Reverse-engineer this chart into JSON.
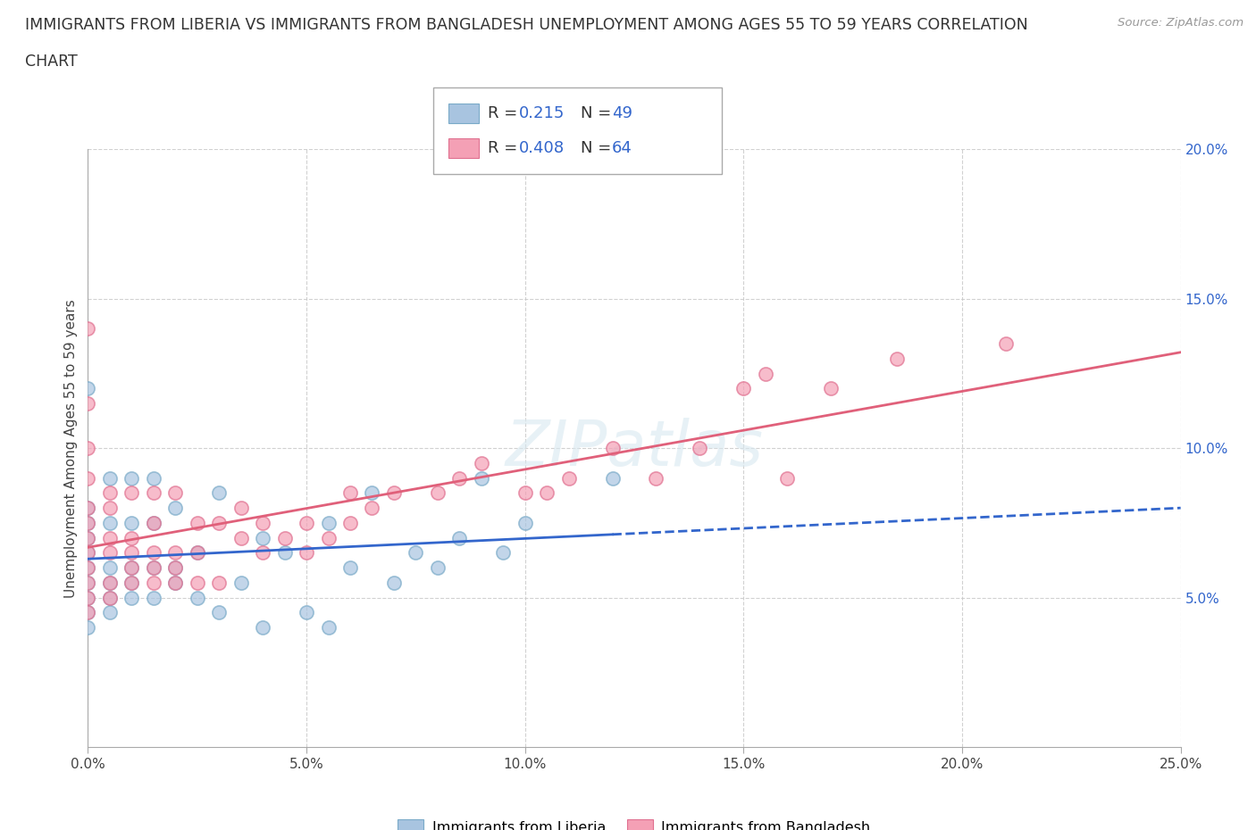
{
  "title_line1": "IMMIGRANTS FROM LIBERIA VS IMMIGRANTS FROM BANGLADESH UNEMPLOYMENT AMONG AGES 55 TO 59 YEARS CORRELATION",
  "title_line2": "CHART",
  "source_text": "Source: ZipAtlas.com",
  "ylabel": "Unemployment Among Ages 55 to 59 years",
  "xlim": [
    0.0,
    0.25
  ],
  "ylim": [
    0.0,
    0.2
  ],
  "xticks": [
    0.0,
    0.05,
    0.1,
    0.15,
    0.2,
    0.25
  ],
  "xticklabels": [
    "0.0%",
    "5.0%",
    "10.0%",
    "15.0%",
    "20.0%",
    "25.0%"
  ],
  "yticks": [
    0.05,
    0.1,
    0.15,
    0.2
  ],
  "yticklabels": [
    "5.0%",
    "10.0%",
    "15.0%",
    "20.0%"
  ],
  "liberia_color": "#a8c4e0",
  "liberia_edge_color": "#7aaac8",
  "bangladesh_color": "#f4a0b5",
  "bangladesh_edge_color": "#e07090",
  "trendline_liberia_color": "#3366cc",
  "trendline_bangladesh_color": "#e0607a",
  "legend_R_color": "#3366cc",
  "liberia_R": 0.215,
  "liberia_N": 49,
  "bangladesh_R": 0.408,
  "bangladesh_N": 64,
  "liberia_x": [
    0.0,
    0.0,
    0.0,
    0.0,
    0.0,
    0.0,
    0.0,
    0.0,
    0.0,
    0.0,
    0.005,
    0.005,
    0.005,
    0.005,
    0.005,
    0.005,
    0.01,
    0.01,
    0.01,
    0.01,
    0.01,
    0.015,
    0.015,
    0.015,
    0.015,
    0.02,
    0.02,
    0.02,
    0.025,
    0.025,
    0.03,
    0.03,
    0.035,
    0.04,
    0.04,
    0.045,
    0.05,
    0.055,
    0.055,
    0.06,
    0.065,
    0.07,
    0.075,
    0.08,
    0.085,
    0.09,
    0.095,
    0.1,
    0.12
  ],
  "liberia_y": [
    0.04,
    0.045,
    0.05,
    0.055,
    0.06,
    0.065,
    0.07,
    0.075,
    0.08,
    0.12,
    0.045,
    0.05,
    0.055,
    0.06,
    0.075,
    0.09,
    0.05,
    0.055,
    0.06,
    0.075,
    0.09,
    0.05,
    0.06,
    0.075,
    0.09,
    0.055,
    0.06,
    0.08,
    0.05,
    0.065,
    0.045,
    0.085,
    0.055,
    0.04,
    0.07,
    0.065,
    0.045,
    0.04,
    0.075,
    0.06,
    0.085,
    0.055,
    0.065,
    0.06,
    0.07,
    0.09,
    0.065,
    0.075,
    0.09
  ],
  "bangladesh_x": [
    0.0,
    0.0,
    0.0,
    0.0,
    0.0,
    0.0,
    0.0,
    0.0,
    0.0,
    0.0,
    0.0,
    0.0,
    0.005,
    0.005,
    0.005,
    0.005,
    0.005,
    0.005,
    0.01,
    0.01,
    0.01,
    0.01,
    0.01,
    0.015,
    0.015,
    0.015,
    0.015,
    0.015,
    0.02,
    0.02,
    0.02,
    0.02,
    0.025,
    0.025,
    0.025,
    0.03,
    0.03,
    0.035,
    0.035,
    0.04,
    0.04,
    0.045,
    0.05,
    0.05,
    0.055,
    0.06,
    0.06,
    0.065,
    0.07,
    0.08,
    0.085,
    0.09,
    0.1,
    0.105,
    0.11,
    0.12,
    0.13,
    0.14,
    0.15,
    0.155,
    0.16,
    0.17,
    0.185,
    0.21
  ],
  "bangladesh_y": [
    0.045,
    0.05,
    0.055,
    0.06,
    0.065,
    0.07,
    0.075,
    0.08,
    0.09,
    0.1,
    0.115,
    0.14,
    0.05,
    0.055,
    0.065,
    0.07,
    0.08,
    0.085,
    0.055,
    0.06,
    0.065,
    0.07,
    0.085,
    0.055,
    0.06,
    0.065,
    0.075,
    0.085,
    0.055,
    0.06,
    0.065,
    0.085,
    0.055,
    0.065,
    0.075,
    0.055,
    0.075,
    0.07,
    0.08,
    0.065,
    0.075,
    0.07,
    0.065,
    0.075,
    0.07,
    0.075,
    0.085,
    0.08,
    0.085,
    0.085,
    0.09,
    0.095,
    0.085,
    0.085,
    0.09,
    0.1,
    0.09,
    0.1,
    0.12,
    0.125,
    0.09,
    0.12,
    0.13,
    0.135
  ],
  "background_color": "#ffffff",
  "grid_color": "#cccccc",
  "watermark": "ZIPatlas"
}
